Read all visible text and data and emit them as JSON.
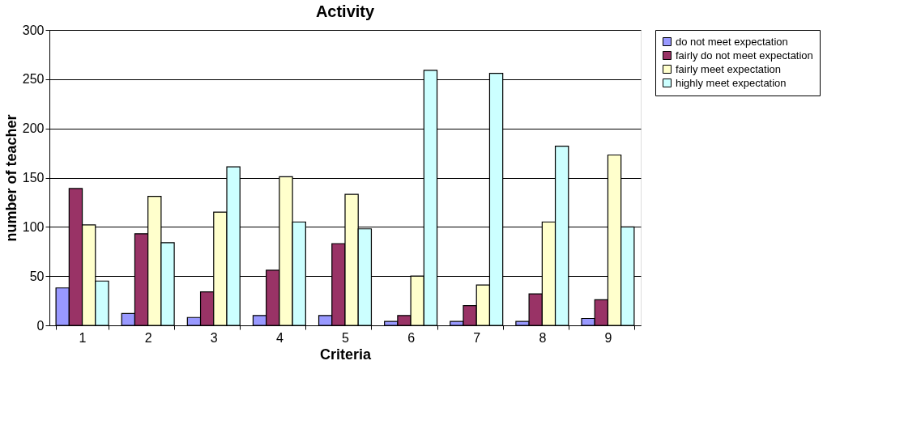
{
  "chart_data": {
    "type": "bar",
    "title": "Activity",
    "xlabel": "Criteria",
    "ylabel": "number of teacher",
    "categories": [
      "1",
      "2",
      "3",
      "4",
      "5",
      "6",
      "7",
      "8",
      "9"
    ],
    "series": [
      {
        "name": "do not meet expectation",
        "color": "#9999ff",
        "values": [
          38,
          12,
          8,
          10,
          10,
          4,
          4,
          4,
          7
        ]
      },
      {
        "name": "fairly do not meet expectation",
        "color": "#993366",
        "values": [
          139,
          93,
          34,
          56,
          83,
          10,
          20,
          32,
          26
        ]
      },
      {
        "name": "fairly meet expectation",
        "color": "#ffffcc",
        "values": [
          102,
          131,
          115,
          151,
          133,
          50,
          41,
          105,
          173
        ]
      },
      {
        "name": "highly meet expectation",
        "color": "#ccffff",
        "values": [
          45,
          84,
          161,
          105,
          98,
          259,
          256,
          182,
          100
        ]
      }
    ],
    "ylim": [
      0,
      300
    ],
    "yticks": [
      0,
      50,
      100,
      150,
      200,
      250,
      300
    ],
    "grid": "y",
    "legend": "right"
  }
}
